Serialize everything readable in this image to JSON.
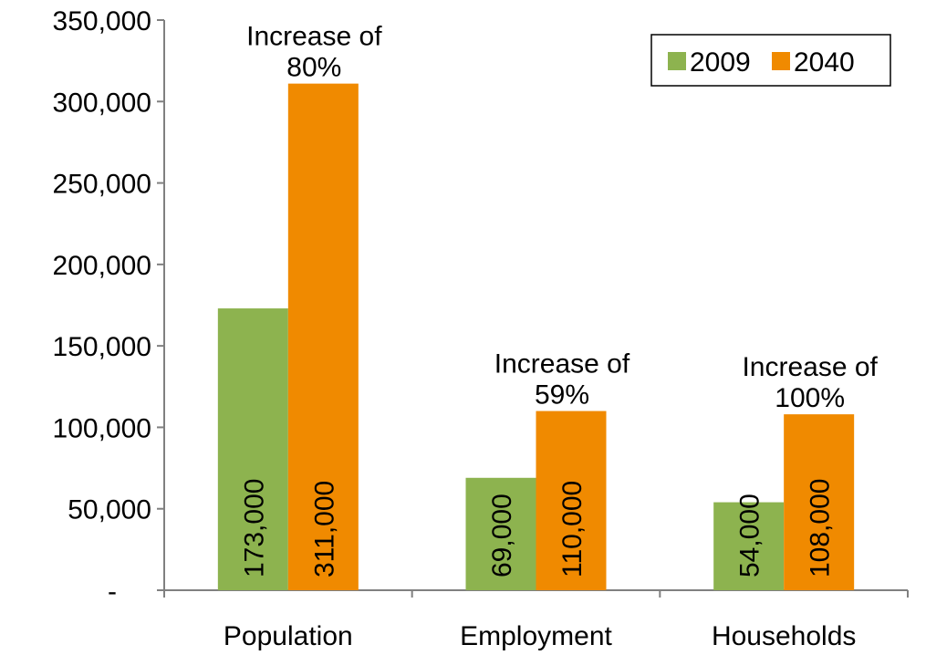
{
  "chart_data": {
    "type": "bar",
    "categories": [
      "Population",
      "Employment",
      "Households"
    ],
    "series": [
      {
        "name": "2009",
        "color": "#8db34f",
        "values": [
          173000,
          69000,
          54000
        ],
        "labels": [
          "173,000",
          "69,000",
          "54,000"
        ]
      },
      {
        "name": "2040",
        "color": "#f08a00",
        "values": [
          311000,
          110000,
          108000
        ],
        "labels": [
          "311,000",
          "110,000",
          "108,000"
        ]
      }
    ],
    "annotations": [
      {
        "category": "Population",
        "line1": "Increase of",
        "line2": "80%"
      },
      {
        "category": "Employment",
        "line1": "Increase of",
        "line2": "59%"
      },
      {
        "category": "Households",
        "line1": "Increase of",
        "line2": "100%"
      }
    ],
    "yticks": [
      "-",
      "50,000",
      "100,000",
      "150,000",
      "200,000",
      "250,000",
      "300,000",
      "350,000"
    ],
    "ylim": [
      0,
      350000
    ],
    "legend_position": "top-right",
    "grid": false
  }
}
